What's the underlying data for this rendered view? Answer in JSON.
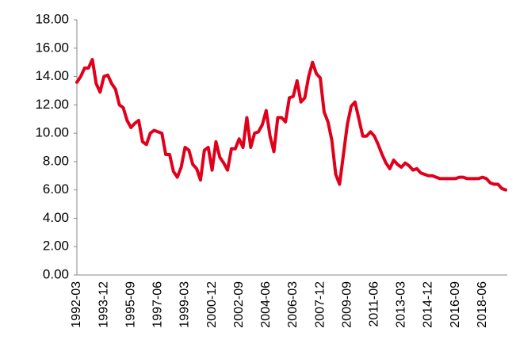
{
  "chart_data": {
    "type": "line",
    "categories": [
      "1992-03",
      null,
      null,
      null,
      null,
      null,
      null,
      "1993-12",
      null,
      null,
      null,
      null,
      null,
      null,
      "1995-09",
      null,
      null,
      null,
      null,
      null,
      null,
      "1997-06",
      null,
      null,
      null,
      null,
      null,
      null,
      "1999-03",
      null,
      null,
      null,
      null,
      null,
      null,
      "2000-12",
      null,
      null,
      null,
      null,
      null,
      null,
      "2002-09",
      null,
      null,
      null,
      null,
      null,
      null,
      "2004-06",
      null,
      null,
      null,
      null,
      null,
      null,
      "2006-03",
      null,
      null,
      null,
      null,
      null,
      null,
      "2007-12",
      null,
      null,
      null,
      null,
      null,
      null,
      "2009-09",
      null,
      null,
      null,
      null,
      null,
      null,
      "2011-06",
      null,
      null,
      null,
      null,
      null,
      null,
      "2013-03",
      null,
      null,
      null,
      null,
      null,
      null,
      "2014-12",
      null,
      null,
      null,
      null,
      null,
      null,
      "2016-09",
      null,
      null,
      null,
      null,
      null,
      null,
      "2018-06",
      null,
      null,
      null,
      null,
      null,
      null
    ],
    "values": [
      13.6,
      14.0,
      14.6,
      14.6,
      15.2,
      13.5,
      12.9,
      14.0,
      14.1,
      13.5,
      13.1,
      12.0,
      11.8,
      10.9,
      10.4,
      10.7,
      10.9,
      9.4,
      9.2,
      10.0,
      10.2,
      10.1,
      10.0,
      8.5,
      8.5,
      7.3,
      6.9,
      7.6,
      9.0,
      8.8,
      7.8,
      7.5,
      6.7,
      8.8,
      9.0,
      7.4,
      9.4,
      8.3,
      7.9,
      7.4,
      8.9,
      8.9,
      9.6,
      9.0,
      11.1,
      9.0,
      10.0,
      10.1,
      10.6,
      11.6,
      9.8,
      8.7,
      11.1,
      11.1,
      10.8,
      12.5,
      12.6,
      13.7,
      12.2,
      12.5,
      14.0,
      15.0,
      14.2,
      13.9,
      11.5,
      10.8,
      9.5,
      7.1,
      6.4,
      8.5,
      10.6,
      11.9,
      12.2,
      11.0,
      9.8,
      9.8,
      10.1,
      9.8,
      9.2,
      8.5,
      7.9,
      7.5,
      8.1,
      7.8,
      7.6,
      7.9,
      7.7,
      7.4,
      7.5,
      7.2,
      7.1,
      7.0,
      7.0,
      6.9,
      6.8,
      6.8,
      6.8,
      6.8,
      6.8,
      6.9,
      6.9,
      6.8,
      6.8,
      6.8,
      6.8,
      6.9,
      6.8,
      6.5,
      6.4,
      6.4,
      6.1,
      6.0
    ],
    "color": "#e0001b",
    "ylim": [
      0,
      18
    ],
    "yticks": [
      {
        "value": 0,
        "label": "0.00"
      },
      {
        "value": 2,
        "label": "2.00"
      },
      {
        "value": 4,
        "label": "4.00"
      },
      {
        "value": 6,
        "label": "6.00"
      },
      {
        "value": 8,
        "label": "8.00"
      },
      {
        "value": 10,
        "label": "10.00"
      },
      {
        "value": 12,
        "label": "12.00"
      },
      {
        "value": 14,
        "label": "14.00"
      },
      {
        "value": 16,
        "label": "16.00"
      },
      {
        "value": 18,
        "label": "18.00"
      }
    ],
    "grid": false
  }
}
